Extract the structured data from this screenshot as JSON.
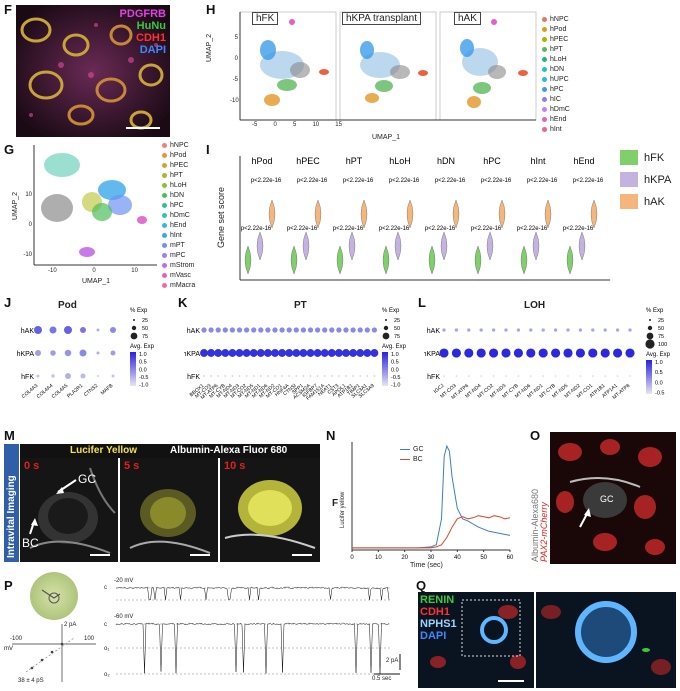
{
  "panel_letters": {
    "F": "F",
    "G": "G",
    "H": "H",
    "I": "I",
    "J": "J",
    "K": "K",
    "L": "L",
    "M": "M",
    "N": "N",
    "O": "O",
    "P": "P",
    "Q": "Q"
  },
  "F": {
    "labels": [
      "PDGFRB",
      "HuNu",
      "CDH1",
      "DAPI"
    ],
    "colors": [
      "#e040e0",
      "#3cc83c",
      "#e02020",
      "#2f6fe8"
    ]
  },
  "H": {
    "titles": [
      "hFK",
      "hKPA transplant",
      "hAK"
    ],
    "ylabel": "UMAP_2",
    "xlabel": "UMAP_1",
    "xticks": [
      "-5",
      "0",
      "5",
      "10",
      "15"
    ],
    "yticks": [
      "5",
      "0",
      "-5",
      "-10"
    ],
    "legend": [
      {
        "name": "hNPC",
        "color": "#e07a5a"
      },
      {
        "name": "hPod",
        "color": "#d4a017"
      },
      {
        "name": "hPEC",
        "color": "#a9b500"
      },
      {
        "name": "hPT",
        "color": "#5cb85c"
      },
      {
        "name": "hLoH",
        "color": "#22b573"
      },
      {
        "name": "hDN",
        "color": "#20c2b5"
      },
      {
        "name": "hUPC",
        "color": "#2bb8e0"
      },
      {
        "name": "hPC",
        "color": "#3d9be9"
      },
      {
        "name": "hIC",
        "color": "#8a7ff0"
      },
      {
        "name": "hDmC",
        "color": "#c77dff"
      },
      {
        "name": "hEnd",
        "color": "#e75fc0"
      },
      {
        "name": "hInt",
        "color": "#f06292"
      }
    ]
  },
  "G": {
    "ylabel": "UMAP_2",
    "xlabel": "UMAP_1",
    "xticks": [
      "-10",
      "0",
      "10"
    ],
    "yticks": [
      "10",
      "0",
      "-10"
    ],
    "legend": [
      {
        "name": "hNPC",
        "color": "#f08080"
      },
      {
        "name": "hPod",
        "color": "#e6953c"
      },
      {
        "name": "hPEC",
        "color": "#d1a42e"
      },
      {
        "name": "hPT",
        "color": "#b0b32c"
      },
      {
        "name": "hLoH",
        "color": "#8cbd3a"
      },
      {
        "name": "hDN",
        "color": "#4dbd5c"
      },
      {
        "name": "hPC",
        "color": "#34c08a"
      },
      {
        "name": "hDmC",
        "color": "#2fc2b5"
      },
      {
        "name": "hEnd",
        "color": "#35b9d6"
      },
      {
        "name": "hInt",
        "color": "#3aa8ea"
      },
      {
        "name": "mPT",
        "color": "#6f93f2"
      },
      {
        "name": "mPC",
        "color": "#9b7ff2"
      },
      {
        "name": "mStrom",
        "color": "#c46ae6"
      },
      {
        "name": "mVasc",
        "color": "#e25fc8"
      },
      {
        "name": "mMacra",
        "color": "#f16aa3"
      }
    ]
  },
  "I": {
    "ylabel": "Gene set score",
    "groups": [
      "hPod",
      "hPEC",
      "hPT",
      "hLoH",
      "hDN",
      "hPC",
      "hInt",
      "hEnd"
    ],
    "ptext": "p<2.22e-16",
    "legend": [
      {
        "name": "hFK",
        "color": "#7fcf6a"
      },
      {
        "name": "hKPA",
        "color": "#c4b3e0"
      },
      {
        "name": "hAK",
        "color": "#f5b67c"
      }
    ]
  },
  "J": {
    "title": "Pod",
    "rows": [
      "hAK",
      "hKPA",
      "hFK"
    ],
    "genes": [
      "COL4A3",
      "COL4A4",
      "COL4A5",
      "PLA2R1",
      "CTNS2",
      "MAFB"
    ],
    "sizes": [
      [
        0.8,
        0.7,
        0.8,
        0.6,
        0.3,
        0.6
      ],
      [
        0.6,
        0.55,
        0.65,
        0.7,
        0.3,
        0.5
      ],
      [
        0.3,
        0.35,
        0.6,
        0.5,
        0.2,
        0.3
      ]
    ],
    "levels": [
      [
        0.6,
        0.5,
        0.6,
        0.5,
        0.2,
        0.4
      ],
      [
        0.3,
        0.3,
        0.35,
        0.4,
        0.2,
        0.3
      ],
      [
        0.1,
        0.1,
        0.2,
        0.15,
        0.05,
        0.1
      ]
    ],
    "exp_title": "% Exp",
    "exp_vals": [
      "25",
      "50",
      "75"
    ],
    "avg_title": "Avg. Exp",
    "avg_ticks": [
      "1.0",
      "0.5",
      "0.0",
      "-0.5",
      "-1.0"
    ]
  },
  "K": {
    "title": "PT",
    "rows": [
      "hAK",
      "hKPA",
      "hFK"
    ],
    "genes": [
      "BBOX1",
      "MT-CO3",
      "MT-ATP6",
      "MT-CYB",
      "MT-ND4",
      "MT-ND3",
      "MT-CO2",
      "MT-ND5",
      "MT-ND1",
      "MT-ND6",
      "MT-ND2",
      "MT-CO1",
      "HNF4A",
      "CTNSI",
      "SPP1",
      "ACSM2A",
      "IGFBP7",
      "FAM151A",
      "NEAT1",
      "CST3",
      "APOL1",
      "ATP1B1",
      "TIMP1",
      "SLC3A1",
      "SLC3A9"
    ],
    "exp_title": "% Exp",
    "exp_vals": [
      "25",
      "50",
      "75"
    ],
    "avg_title": "Avg. Exp",
    "avg_ticks": [
      "1.0",
      "0.5",
      "0.0",
      "-0.5",
      "-1.0"
    ]
  },
  "L": {
    "title": "LOH",
    "rows": [
      "hAK",
      "hKPA",
      "hFK"
    ],
    "genes": [
      "IGCJ",
      "MT-CO3",
      "MT-ATP6",
      "MT-ND4",
      "MT-CO2",
      "MT-ND3",
      "MT-CYB",
      "MT-ND6",
      "MT-ND1",
      "MT-CYB",
      "MT-ND5",
      "MT-ND2",
      "MT-CO1",
      "ATP1B1",
      "ATP1A1",
      "MT-ATP8"
    ],
    "exp_title": "% Exp",
    "exp_vals": [
      "25",
      "50",
      "75",
      "100"
    ],
    "avg_title": "Avg. Exp",
    "avg_ticks": [
      "1.0",
      "0.5",
      "0.0",
      "-0.5"
    ]
  },
  "M": {
    "side": "Intravital Imaging",
    "header_left": "Lucifer Yellow",
    "header_right": "Albumin-Alexa Fluor 680",
    "times": [
      "0 s",
      "5 s",
      "10 s"
    ],
    "gc": "GC",
    "bc": "BC"
  },
  "N": {
    "ylabel": "F",
    "ylabel_sub": "Lucifer yellow",
    "xlabel": "Time (sec)",
    "xticks": [
      "0",
      "10",
      "20",
      "30",
      "40",
      "50",
      "60"
    ],
    "legend": [
      {
        "name": "GC",
        "color": "#3a7fc1"
      },
      {
        "name": "BC",
        "color": "#d94a2b"
      }
    ],
    "chart_data": {
      "type": "line",
      "xlabel": "Time (sec)",
      "xlim": [
        0,
        60
      ],
      "series": [
        {
          "name": "GC",
          "x": [
            0,
            5,
            10,
            15,
            20,
            25,
            30,
            32,
            34,
            35,
            36,
            37,
            38,
            40,
            42,
            44,
            46,
            48,
            50,
            52,
            54,
            56,
            58,
            60
          ],
          "y": [
            0.02,
            0.02,
            0.02,
            0.02,
            0.02,
            0.02,
            0.03,
            0.05,
            0.3,
            0.9,
            1.0,
            0.95,
            0.7,
            0.4,
            0.3,
            0.28,
            0.25,
            0.22,
            0.2,
            0.18,
            0.17,
            0.16,
            0.15,
            0.14
          ]
        },
        {
          "name": "BC",
          "x": [
            0,
            5,
            10,
            15,
            20,
            25,
            30,
            32,
            34,
            36,
            38,
            40,
            42,
            44,
            46,
            48,
            50,
            52,
            54,
            56,
            58,
            60
          ],
          "y": [
            0.02,
            0.02,
            0.02,
            0.02,
            0.02,
            0.02,
            0.02,
            0.03,
            0.05,
            0.12,
            0.22,
            0.3,
            0.32,
            0.3,
            0.31,
            0.33,
            0.32,
            0.31,
            0.33,
            0.32,
            0.3,
            0.31
          ]
        }
      ]
    }
  },
  "O": {
    "gc": "GC",
    "stain1": "Albumin-Alexa680",
    "stain2": "PAX2-mCherry"
  },
  "P": {
    "v1": "-20 mV",
    "v2": "-60 mV",
    "scale1": "2 pA",
    "scale2": "0.5 sec",
    "iv_top": "2 pA",
    "iv_xl": "-100",
    "iv_xr": "100",
    "iv_mv": "mV",
    "iv_g": "38 ± 4 pS",
    "c": "c",
    "o1": "o₁",
    "o2": "o₂"
  },
  "Q": {
    "labels": [
      "RENIN",
      "CDH1",
      "NPHS1",
      "DAPI"
    ],
    "colors": [
      "#3cc83c",
      "#e02020",
      "#7fc3ff",
      "#2f6fe8"
    ]
  }
}
